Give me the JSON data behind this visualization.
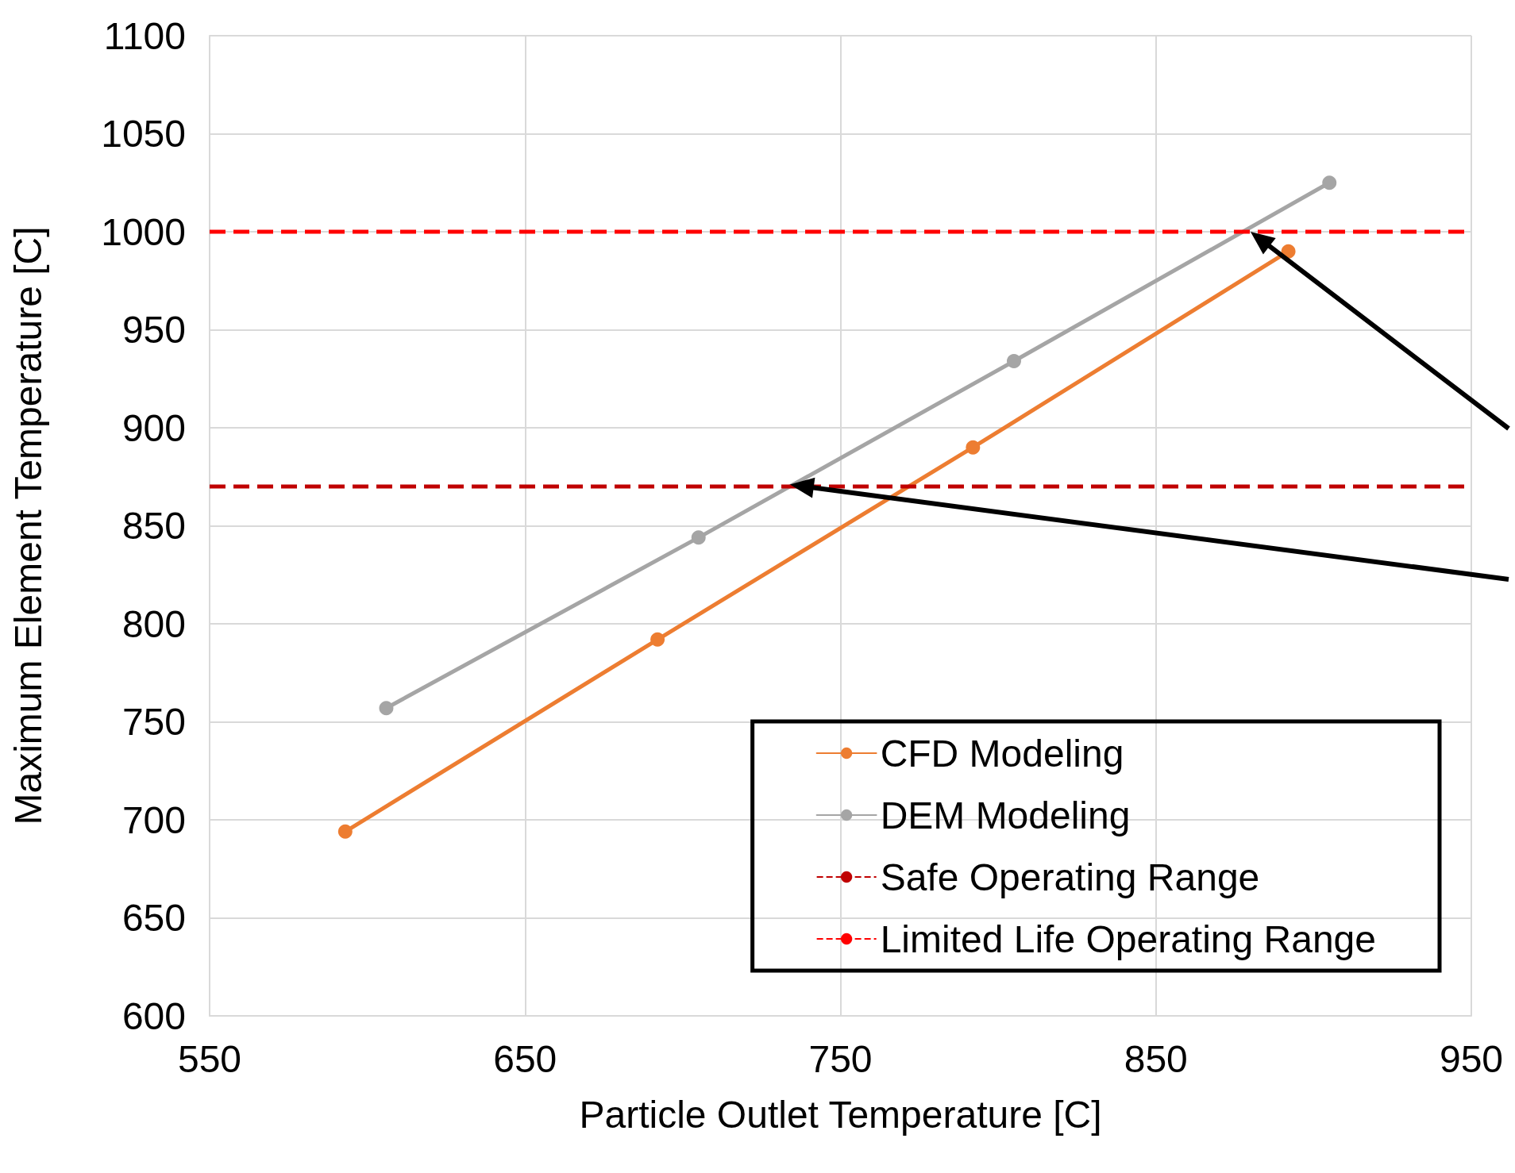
{
  "chart_data": {
    "type": "line",
    "xlabel": "Particle Outlet Temperature [C]",
    "ylabel": "Maximum Element Temperature [C]",
    "series": [
      {
        "name": "CFD Modeling",
        "color": "#ed7d31",
        "x": [
          593,
          692,
          792,
          892
        ],
        "values": [
          694,
          792,
          890,
          990
        ]
      },
      {
        "name": "DEM Modeling",
        "color": "#a5a5a5",
        "x": [
          606,
          705,
          805,
          905
        ],
        "values": [
          757,
          844,
          934,
          1025
        ]
      }
    ],
    "ref_lines": [
      {
        "axis": "y",
        "value": 870,
        "label": "Safe Operating Range",
        "color": "#c00000",
        "line_style": "dashed"
      },
      {
        "axis": "y",
        "value": 1000,
        "label": "Limited Life Operating Range",
        "color": "#ff0000",
        "line_style": "dashed"
      }
    ],
    "xlim": [
      550,
      950
    ],
    "xticks": [
      550,
      650,
      750,
      850,
      950
    ],
    "ylim": [
      600,
      1100
    ],
    "yticks": [
      600,
      650,
      700,
      750,
      800,
      850,
      900,
      950,
      1000,
      1050,
      1100
    ],
    "grid": true,
    "legend": "bottom right",
    "marker": "circle",
    "line_style": "solid"
  }
}
